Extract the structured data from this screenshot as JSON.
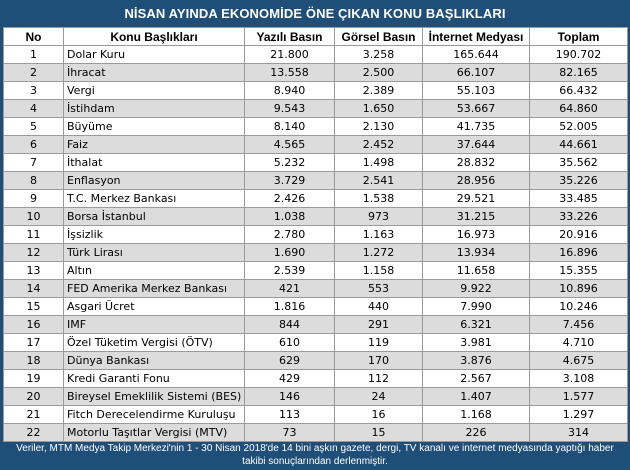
{
  "title": "NİSAN AYINDA EKONOMİDE ÖNE ÇIKAN KONU BAŞLIKLARI",
  "columns": [
    "No",
    "Konu Başlıkları",
    "Yazılı Basın",
    "Görsel Basın",
    "İnternet Medyası",
    "Toplam"
  ],
  "rows": [
    [
      "1",
      "Dolar Kuru",
      "21.800",
      "3.258",
      "165.644",
      "190.702"
    ],
    [
      "2",
      "İhracat",
      "13.558",
      "2.500",
      "66.107",
      "82.165"
    ],
    [
      "3",
      "Vergi",
      "8.940",
      "2.389",
      "55.103",
      "66.432"
    ],
    [
      "4",
      "İstihdam",
      "9.543",
      "1.650",
      "53.667",
      "64.860"
    ],
    [
      "5",
      "Büyüme",
      "8.140",
      "2.130",
      "41.735",
      "52.005"
    ],
    [
      "6",
      "Faiz",
      "4.565",
      "2.452",
      "37.644",
      "44.661"
    ],
    [
      "7",
      "İthalat",
      "5.232",
      "1.498",
      "28.832",
      "35.562"
    ],
    [
      "8",
      "Enflasyon",
      "3.729",
      "2.541",
      "28.956",
      "35.226"
    ],
    [
      "9",
      "T.C. Merkez Bankası",
      "2.426",
      "1.538",
      "29.521",
      "33.485"
    ],
    [
      "10",
      "Borsa İstanbul",
      "1.038",
      "973",
      "31.215",
      "33.226"
    ],
    [
      "11",
      "İşsizlik",
      "2.780",
      "1.163",
      "16.973",
      "20.916"
    ],
    [
      "12",
      "Türk Lirası",
      "1.690",
      "1.272",
      "13.934",
      "16.896"
    ],
    [
      "13",
      "Altın",
      "2.539",
      "1.158",
      "11.658",
      "15.355"
    ],
    [
      "14",
      "FED Amerika Merkez Bankası",
      "421",
      "553",
      "9.922",
      "10.896"
    ],
    [
      "15",
      "Asgari Ücret",
      "1.816",
      "440",
      "7.990",
      "10.246"
    ],
    [
      "16",
      "IMF",
      "844",
      "291",
      "6.321",
      "7.456"
    ],
    [
      "17",
      "Özel Tüketim Vergisi (ÖTV)",
      "610",
      "119",
      "3.981",
      "4.710"
    ],
    [
      "18",
      "Dünya Bankası",
      "629",
      "170",
      "3.876",
      "4.675"
    ],
    [
      "19",
      "Kredi Garanti Fonu",
      "429",
      "112",
      "2.567",
      "3.108"
    ],
    [
      "20",
      "Bireysel Emeklilik Sistemi (BES)",
      "146",
      "24",
      "1.407",
      "1.577"
    ],
    [
      "21",
      "Fitch Derecelendirme Kuruluşu",
      "113",
      "16",
      "1.168",
      "1.297"
    ],
    [
      "22",
      "Motorlu Taşıtlar Vergisi (MTV)",
      "73",
      "15",
      "226",
      "314"
    ]
  ],
  "footnote": "Veriler, MTM Medya Takip Merkezi'nin 1 - 30 Nisan 2018'de 14 bini aşkın gazete, dergi, TV kanalı ve internet medyasında yaptığı haber takibi sonuçlarından derlenmiştir.",
  "colors": {
    "frame": "#1f4e79",
    "row_alt": "#dcdcdc",
    "border": "#9a9a9a"
  }
}
